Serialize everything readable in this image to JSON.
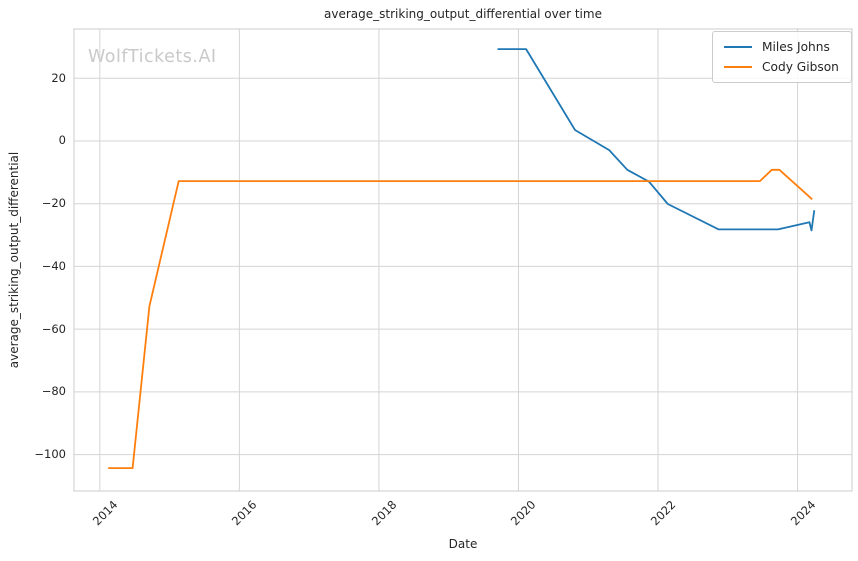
{
  "watermark": "WolfTickets.AI",
  "chart_data": {
    "type": "line",
    "title": "average_striking_output_differential over time",
    "xlabel": "Date",
    "ylabel": "average_striking_output_differential",
    "grid": true,
    "legend_position": "upper right",
    "xlim": [
      2013.63,
      2024.78
    ],
    "ylim": [
      -111.6,
      35.7
    ],
    "x_ticks": [
      2014,
      2016,
      2018,
      2020,
      2022,
      2024
    ],
    "x_tick_labels": [
      "2014",
      "2016",
      "2018",
      "2020",
      "2022",
      "2024"
    ],
    "y_ticks": [
      20,
      0,
      -20,
      -40,
      -60,
      -80,
      -100
    ],
    "y_tick_labels": [
      "20",
      "0",
      "−20",
      "−40",
      "−60",
      "−80",
      "−100"
    ],
    "grid_color": "#d4d4d4",
    "border_color": "#cccccc",
    "series": [
      {
        "name": "Miles Johns",
        "color": "#1f77b4",
        "points": [
          [
            2019.7,
            29.3
          ],
          [
            2020.11,
            29.3
          ],
          [
            2020.81,
            3.5
          ],
          [
            2021.3,
            -2.9
          ],
          [
            2021.56,
            -9.2
          ],
          [
            2021.87,
            -13.0
          ],
          [
            2022.14,
            -20.1
          ],
          [
            2022.87,
            -28.2
          ],
          [
            2023.72,
            -28.2
          ],
          [
            2024.17,
            -25.9
          ],
          [
            2024.2,
            -28.5
          ],
          [
            2024.24,
            -22.1
          ]
        ]
      },
      {
        "name": "Cody Gibson",
        "color": "#ff7f0e",
        "points": [
          [
            2014.12,
            -104.3
          ],
          [
            2014.47,
            -104.3
          ],
          [
            2014.71,
            -52.7
          ],
          [
            2015.13,
            -12.8
          ],
          [
            2023.46,
            -12.8
          ],
          [
            2023.63,
            -9.2
          ],
          [
            2023.74,
            -9.2
          ],
          [
            2024.21,
            -18.6
          ]
        ]
      }
    ]
  }
}
